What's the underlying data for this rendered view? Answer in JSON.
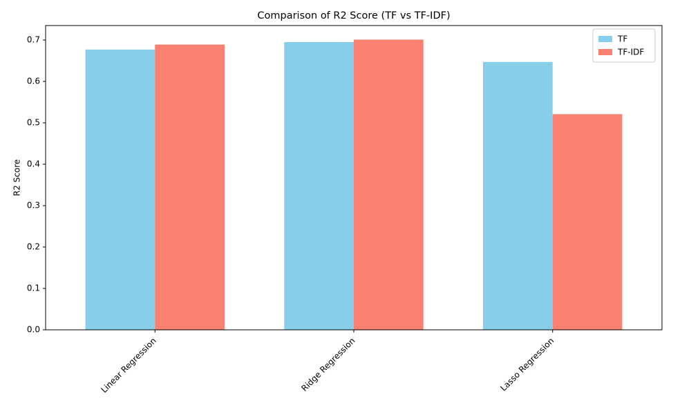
{
  "chart_data": {
    "type": "bar",
    "title": "Comparison of R2 Score (TF vs TF-IDF)",
    "xlabel": "",
    "ylabel": "R2 Score",
    "categories": [
      "Linear Regression",
      "Ridge Regression",
      "Lasso Regression"
    ],
    "series": [
      {
        "name": "TF",
        "values": [
          0.677,
          0.695,
          0.647
        ],
        "color": "#87CEEB"
      },
      {
        "name": "TF-IDF",
        "values": [
          0.689,
          0.701,
          0.521
        ],
        "color": "#FA8072"
      }
    ],
    "ylim": [
      0,
      0.735
    ],
    "yticks": [
      "0.0",
      "0.1",
      "0.2",
      "0.3",
      "0.4",
      "0.5",
      "0.6",
      "0.7"
    ],
    "grid": false,
    "legend_position": "top-right",
    "xtick_rotation": "45"
  }
}
